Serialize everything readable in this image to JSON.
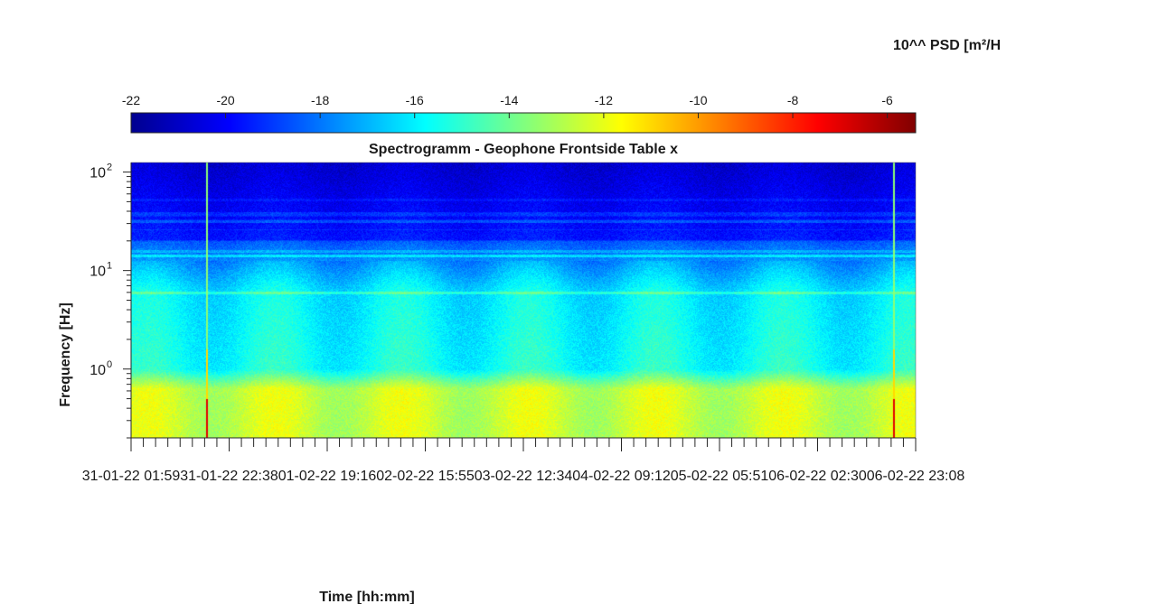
{
  "chart_data": {
    "type": "heatmap",
    "title": "Spectrogramm - Geophone Frontside Table x",
    "xlabel": "Time [hh:mm]",
    "ylabel": "Frequency [Hz]",
    "colorbar": {
      "label": "10^^ PSD [m²/H",
      "range": [
        -22,
        -5.4
      ],
      "ticks": [
        "-22",
        "-20",
        "-18",
        "-16",
        "-14",
        "-12",
        "-10",
        "-8",
        "-6"
      ],
      "colormap": "jet",
      "position": "top"
    },
    "x_ticks": [
      "31-01-22 01:59",
      "31-01-22 22:38",
      "01-02-22 19:16",
      "02-02-22 15:55",
      "03-02-22 12:34",
      "04-02-22 09:12",
      "05-02-22 05:51",
      "06-02-22 02:30",
      "06-02-22 23:08"
    ],
    "y_scale": "log",
    "y_ticks": [
      {
        "base": "10",
        "exp": "0"
      },
      {
        "base": "10",
        "exp": "1"
      },
      {
        "base": "10",
        "exp": "2"
      }
    ],
    "ylim_hz": [
      0.2,
      125
    ],
    "features": {
      "low_band_psd": -12.5,
      "mid_band_psd": -15.5,
      "high_band_psd": -19.5,
      "spike_times": [
        "31-01-22 13:30",
        "06-02-22 18:00"
      ],
      "spike_psd": -7
    }
  }
}
